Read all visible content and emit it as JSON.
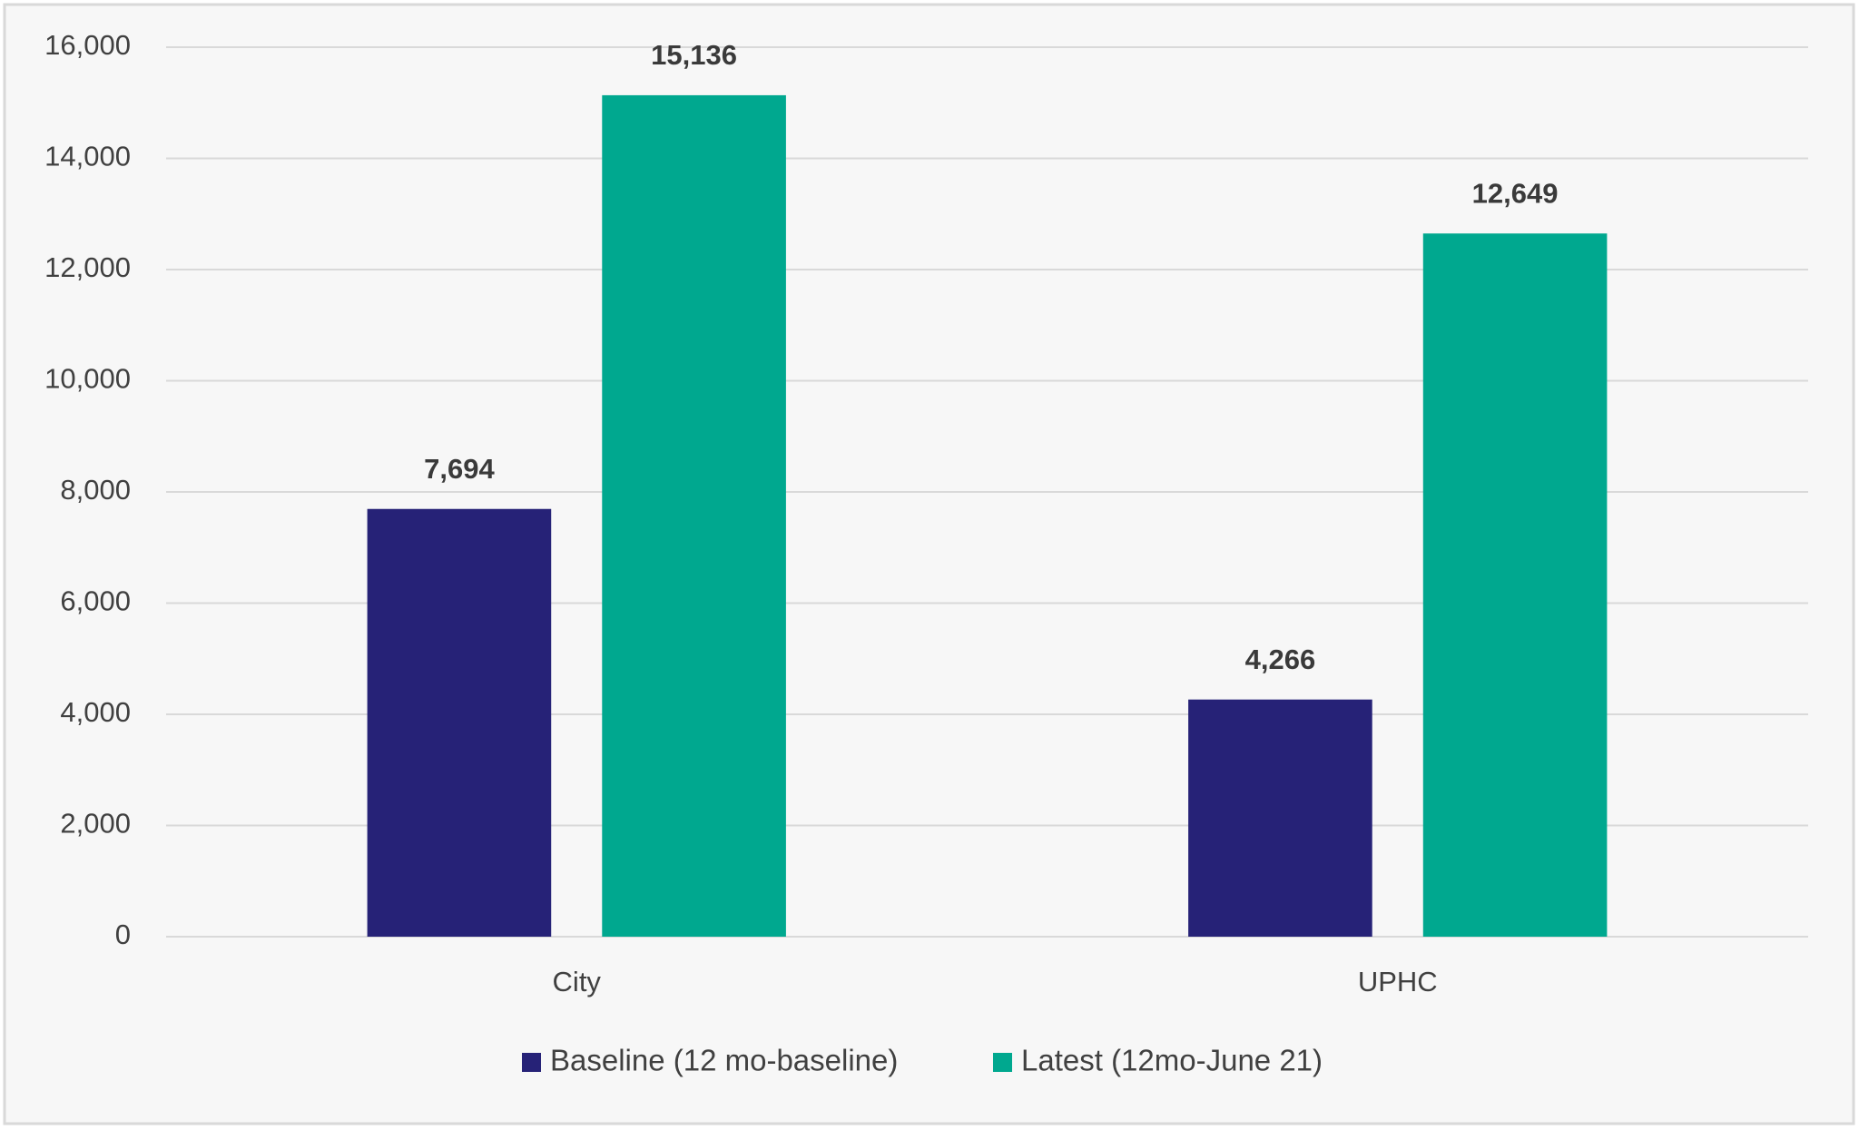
{
  "chart_data": {
    "type": "bar",
    "categories": [
      "City",
      "UPHC"
    ],
    "series": [
      {
        "name": "Baseline (12 mo-baseline)",
        "color": "#262277",
        "values": [
          7694,
          4266
        ],
        "value_labels": [
          "7,694",
          "4,266"
        ]
      },
      {
        "name": "Latest (12mo-June 21)",
        "color": "#00a88f",
        "values": [
          15136,
          12649
        ],
        "value_labels": [
          "15,136",
          "12,649"
        ]
      }
    ],
    "ylim": [
      0,
      16000
    ],
    "yticks": [
      0,
      {
        "value": 2000,
        "label": "2,000"
      },
      {
        "value": 4000,
        "label": "4,000"
      },
      {
        "value": 6000,
        "label": "6,000"
      },
      {
        "value": 8000,
        "label": "8,000"
      },
      {
        "value": 10000,
        "label": "10,000"
      },
      {
        "value": 12000,
        "label": "12,000"
      },
      {
        "value": 14000,
        "label": "14,000"
      },
      {
        "value": 16000,
        "label": "16,000"
      }
    ],
    "grid": true,
    "legend": "bottom"
  }
}
